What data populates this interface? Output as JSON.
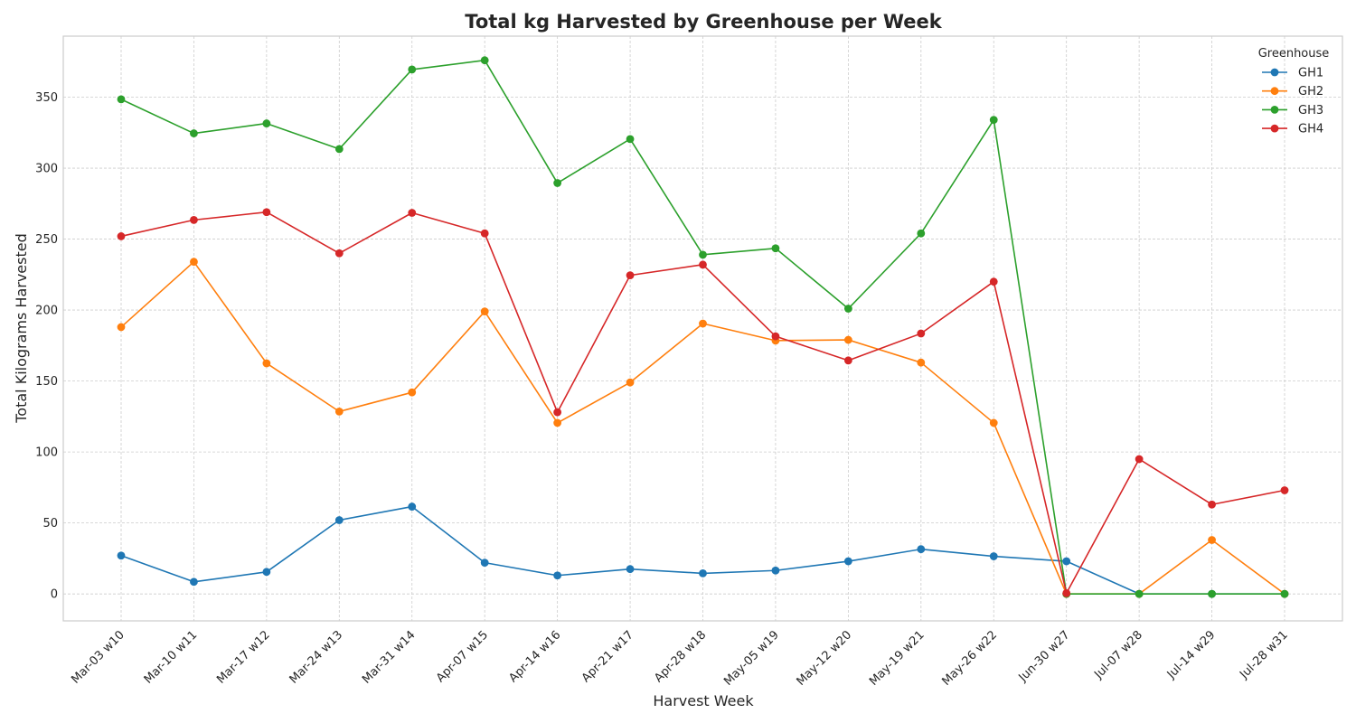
{
  "chart_data": {
    "type": "line",
    "title": "Total kg Harvested by Greenhouse per Week",
    "xlabel": "Harvest Week",
    "ylabel": "Total Kilograms Harvested",
    "ylim": [
      -19,
      393
    ],
    "yticks": [
      0,
      50,
      100,
      150,
      200,
      250,
      300,
      350
    ],
    "grid": true,
    "legend_title": "Greenhouse",
    "legend_position": "top-right",
    "categories": [
      "Mar-03 w10",
      "Mar-10 w11",
      "Mar-17 w12",
      "Mar-24 w13",
      "Mar-31 w14",
      "Apr-07 w15",
      "Apr-14 w16",
      "Apr-21 w17",
      "Apr-28 w18",
      "May-05 w19",
      "May-12 w20",
      "May-19 w21",
      "May-26 w22",
      "Jun-30 w27",
      "Jul-07 w28",
      "Jul-14 w29",
      "Jul-28 w31"
    ],
    "series": [
      {
        "name": "GH1",
        "color": "#1f77b4",
        "values": [
          27,
          8.5,
          15.5,
          52,
          61.5,
          22,
          13,
          17.5,
          14.5,
          16.5,
          23,
          31.5,
          26.5,
          23,
          0,
          0,
          0
        ]
      },
      {
        "name": "GH2",
        "color": "#ff7f0e",
        "values": [
          188,
          234,
          162.5,
          128.5,
          142,
          199,
          120.5,
          149,
          190.5,
          178.5,
          179,
          163,
          120.5,
          0,
          0,
          38,
          0
        ]
      },
      {
        "name": "GH3",
        "color": "#2ca02c",
        "values": [
          348.5,
          324.5,
          331.5,
          313.5,
          369.5,
          376,
          289.5,
          320.5,
          239,
          243.5,
          201,
          254,
          334,
          0,
          0,
          0,
          0
        ]
      },
      {
        "name": "GH4",
        "color": "#d62728",
        "values": [
          252,
          263.5,
          269,
          240,
          268.5,
          254,
          128,
          224.5,
          232,
          181.5,
          164.5,
          183.5,
          220,
          0.5,
          95,
          63,
          73
        ]
      }
    ]
  }
}
